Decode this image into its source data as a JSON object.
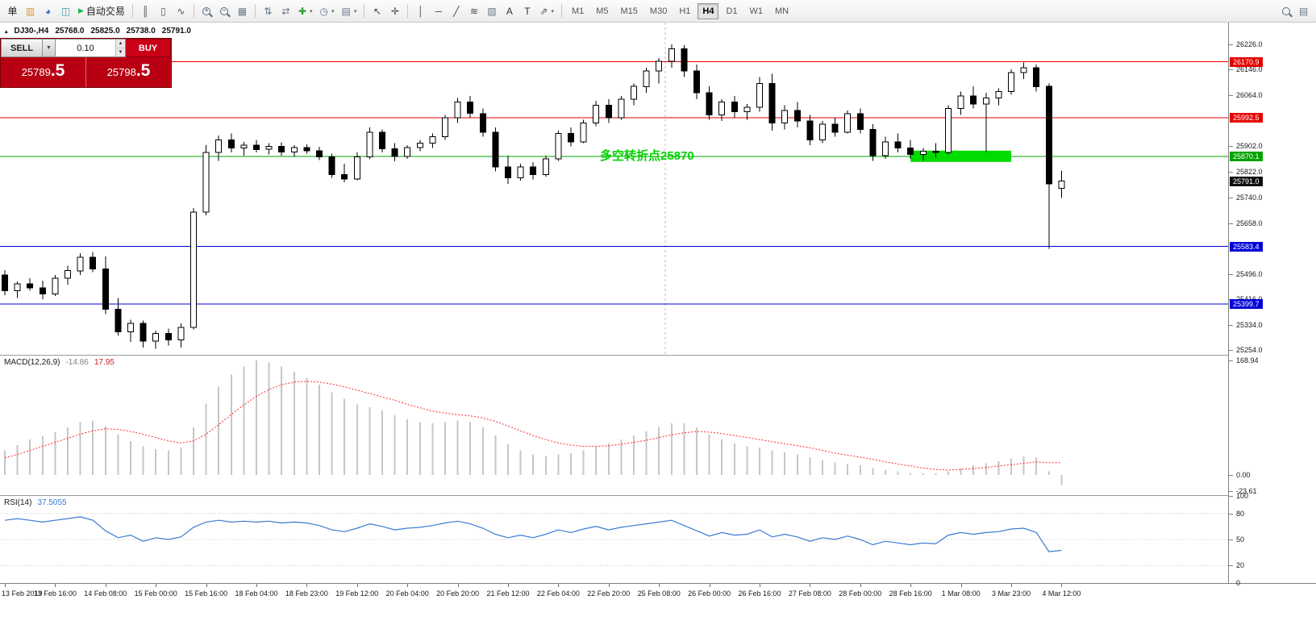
{
  "toolbar": {
    "caret_glyph": "▾",
    "plus_glyph": "+",
    "minus_glyph": "−",
    "timeframes": [
      "M1",
      "M5",
      "M15",
      "M30",
      "H1",
      "H4",
      "D1",
      "W1",
      "MN"
    ],
    "active_timeframe": "H4",
    "items": [
      {
        "type": "button",
        "name": "new-order-button",
        "label": "单"
      },
      {
        "type": "icon",
        "name": "new-chart-icon",
        "glyph": "▥",
        "color": "#d79b3c"
      },
      {
        "type": "icon",
        "name": "profiles-icon",
        "glyph": "◕",
        "color": "#3e6eb4"
      },
      {
        "type": "icon",
        "name": "market-watch-icon",
        "glyph": "◫",
        "color": "#2e9e9e"
      },
      {
        "type": "autotrading",
        "name": "autotrading-button",
        "label": "自动交易",
        "play_glyph": "▶",
        "play_color": "#1db954"
      },
      {
        "type": "sep"
      },
      {
        "type": "icon",
        "name": "bar-chart-icon",
        "glyph": "║",
        "color": "#555555"
      },
      {
        "type": "icon",
        "name": "candlestick-chart-icon",
        "glyph": "▯",
        "color": "#555555"
      },
      {
        "type": "icon",
        "name": "line-chart-icon",
        "glyph": "∿",
        "color": "#555555"
      },
      {
        "type": "sep"
      },
      {
        "type": "zoom-in"
      },
      {
        "type": "zoom-out"
      },
      {
        "type": "icon",
        "name": "tile-windows-icon",
        "glyph": "▦",
        "color": "#6b7b8d"
      },
      {
        "type": "sep"
      },
      {
        "type": "icon",
        "name": "arrange-icon",
        "glyph": "⇅",
        "color": "#667788"
      },
      {
        "type": "icon",
        "name": "auto-scroll-icon",
        "glyph": "⇄",
        "color": "#667788"
      },
      {
        "type": "dropdown-icon",
        "name": "add-indicator-button",
        "glyph": "✚",
        "color": "#2f9e2f"
      },
      {
        "type": "dropdown-icon",
        "name": "period-button",
        "glyph": "◷",
        "color": "#667788"
      },
      {
        "type": "dropdown-icon",
        "name": "template-button",
        "glyph": "▤",
        "color": "#667788"
      },
      {
        "type": "sep"
      },
      {
        "type": "icon",
        "name": "cursor-icon",
        "glyph": "↖",
        "color": "#444444"
      },
      {
        "type": "icon",
        "name": "crosshair-icon",
        "glyph": "✛",
        "color": "#444444"
      },
      {
        "type": "sep"
      },
      {
        "type": "icon",
        "name": "vertical-line-icon",
        "glyph": "│",
        "color": "#444444"
      },
      {
        "type": "icon",
        "name": "horizontal-line-icon",
        "glyph": "─",
        "color": "#444444"
      },
      {
        "type": "icon",
        "name": "trendline-icon",
        "glyph": "╱",
        "color": "#444444"
      },
      {
        "type": "icon",
        "name": "fibonacci-icon",
        "glyph": "≋",
        "color": "#444444"
      },
      {
        "type": "icon",
        "name": "shapes-icon",
        "glyph": "▧",
        "color": "#667788"
      },
      {
        "type": "icon",
        "name": "text-tool-icon",
        "glyph": "A",
        "color": "#333333"
      },
      {
        "type": "icon",
        "name": "text-label-icon",
        "glyph": "T",
        "color": "#333333"
      },
      {
        "type": "dropdown-icon",
        "name": "arrows-tool-button",
        "glyph": "⇗",
        "color": "#555555"
      },
      {
        "type": "sep"
      },
      {
        "type": "timeframes"
      },
      {
        "type": "spacer"
      },
      {
        "type": "search"
      },
      {
        "type": "icon",
        "name": "data-window-icon",
        "glyph": "▤",
        "color": "#667788"
      }
    ]
  },
  "symbol_info": {
    "marker_glyph": "▴",
    "symbol": "DJ30-,H4",
    "open": "25768.0",
    "high": "25825.0",
    "low": "25738.0",
    "close": "25791.0"
  },
  "trade_panel": {
    "sell_label": "SELL",
    "buy_label": "BUY",
    "lot_size": "0.10",
    "dropdown_glyph": "▼",
    "spin_up_glyph": "▲",
    "spin_down_glyph": "▼",
    "sell_price_main": "25789",
    "sell_price_pips": ".5",
    "buy_price_main": "25798",
    "buy_price_pips": ".5",
    "colors": {
      "background": "#b80012",
      "buy_button": "#c90016",
      "sell_button": "#e2e2e2",
      "price_text": "#ffffff"
    }
  },
  "annotation": {
    "text": "多空转折点25870",
    "color": "#00d300"
  },
  "chart_data": {
    "type": "candlestick",
    "price_chart": {
      "ylim": [
        25254,
        26226
      ],
      "axis_ticks": [
        "26226.0",
        "26146.0",
        "26064.0",
        "25902.0",
        "25822.0",
        "25740.0",
        "25658.0",
        "25496.0",
        "25416.0",
        "25334.0",
        "25254.0"
      ],
      "colors": {
        "up": "#ffffff",
        "down": "#000000",
        "wick": "#000000"
      },
      "hlines": [
        {
          "price": 26170.9,
          "label": "26170.9",
          "color": "#e60000"
        },
        {
          "price": 25992.5,
          "label": "25992.5",
          "color": "#e60000"
        },
        {
          "price": 25870.1,
          "label": "25870.1",
          "color": "#00a400"
        },
        {
          "price": 25583.4,
          "label": "25583.4",
          "color": "#0000d8"
        },
        {
          "price": 25399.7,
          "label": "25399.7",
          "color": "#0000d8"
        }
      ],
      "current_price": {
        "value": 25791.0,
        "label": "25791.0",
        "color": "#101010"
      },
      "green_box": {
        "start_index": 72.2,
        "end_index": 79.8,
        "price": 25870.1,
        "color": "#00dc00"
      },
      "vertical_line": {
        "index": 52.5,
        "color": "#bcbcbc"
      },
      "candles": [
        [
          25492,
          25508,
          25428,
          25442
        ],
        [
          25442,
          25472,
          25420,
          25464
        ],
        [
          25464,
          25482,
          25442,
          25452
        ],
        [
          25452,
          25474,
          25415,
          25432
        ],
        [
          25432,
          25492,
          25426,
          25482
        ],
        [
          25482,
          25522,
          25462,
          25506
        ],
        [
          25506,
          25562,
          25492,
          25549
        ],
        [
          25549,
          25566,
          25502,
          25512
        ],
        [
          25512,
          25552,
          25368,
          25384
        ],
        [
          25384,
          25420,
          25300,
          25312
        ],
        [
          25312,
          25350,
          25280,
          25338
        ],
        [
          25338,
          25348,
          25262,
          25282
        ],
        [
          25282,
          25316,
          25258,
          25306
        ],
        [
          25306,
          25322,
          25268,
          25286
        ],
        [
          25286,
          25338,
          25262,
          25326
        ],
        [
          25326,
          25706,
          25320,
          25692
        ],
        [
          25692,
          25906,
          25682,
          25882
        ],
        [
          25882,
          25936,
          25856,
          25922
        ],
        [
          25922,
          25942,
          25882,
          25896
        ],
        [
          25896,
          25916,
          25872,
          25906
        ],
        [
          25906,
          25922,
          25882,
          25892
        ],
        [
          25892,
          25912,
          25876,
          25902
        ],
        [
          25902,
          25914,
          25872,
          25884
        ],
        [
          25884,
          25906,
          25868,
          25898
        ],
        [
          25898,
          25908,
          25878,
          25888
        ],
        [
          25888,
          25900,
          25858,
          25868
        ],
        [
          25868,
          25878,
          25802,
          25812
        ],
        [
          25812,
          25846,
          25788,
          25798
        ],
        [
          25798,
          25882,
          25794,
          25868
        ],
        [
          25868,
          25962,
          25860,
          25946
        ],
        [
          25946,
          25956,
          25882,
          25894
        ],
        [
          25894,
          25912,
          25854,
          25870
        ],
        [
          25870,
          25906,
          25862,
          25898
        ],
        [
          25898,
          25922,
          25886,
          25912
        ],
        [
          25912,
          25942,
          25896,
          25932
        ],
        [
          25932,
          26002,
          25922,
          25992
        ],
        [
          25992,
          26056,
          25976,
          26042
        ],
        [
          26042,
          26062,
          25992,
          26006
        ],
        [
          26006,
          26022,
          25932,
          25946
        ],
        [
          25946,
          25962,
          25822,
          25836
        ],
        [
          25836,
          25872,
          25782,
          25802
        ],
        [
          25802,
          25846,
          25792,
          25836
        ],
        [
          25836,
          25852,
          25796,
          25812
        ],
        [
          25812,
          25872,
          25806,
          25862
        ],
        [
          25862,
          25952,
          25856,
          25942
        ],
        [
          25942,
          25962,
          25902,
          25916
        ],
        [
          25916,
          25986,
          25912,
          25976
        ],
        [
          25976,
          26046,
          25966,
          26032
        ],
        [
          26032,
          26052,
          25976,
          25992
        ],
        [
          25992,
          26062,
          25986,
          26052
        ],
        [
          26052,
          26102,
          26032,
          26092
        ],
        [
          26092,
          26152,
          26072,
          26142
        ],
        [
          26142,
          26182,
          26102,
          26172
        ],
        [
          26172,
          26226,
          26152,
          26212
        ],
        [
          26212,
          26224,
          26122,
          26142
        ],
        [
          26142,
          26162,
          26052,
          26072
        ],
        [
          26072,
          26092,
          25986,
          26002
        ],
        [
          26002,
          26052,
          25982,
          26042
        ],
        [
          26042,
          26062,
          25992,
          26012
        ],
        [
          26012,
          26036,
          25986,
          26026
        ],
        [
          26026,
          26122,
          26012,
          26102
        ],
        [
          26102,
          26132,
          25952,
          25976
        ],
        [
          25976,
          26032,
          25956,
          26016
        ],
        [
          26016,
          26042,
          25962,
          25982
        ],
        [
          25982,
          26002,
          25906,
          25922
        ],
        [
          25922,
          25982,
          25912,
          25972
        ],
        [
          25972,
          25992,
          25932,
          25946
        ],
        [
          25946,
          26016,
          25942,
          26006
        ],
        [
          26006,
          26022,
          25942,
          25956
        ],
        [
          25956,
          25972,
          25856,
          25872
        ],
        [
          25872,
          25932,
          25862,
          25916
        ],
        [
          25916,
          25942,
          25882,
          25896
        ],
        [
          25896,
          25922,
          25862,
          25876
        ],
        [
          25876,
          25896,
          25856,
          25886
        ],
        [
          25886,
          25912,
          25866,
          25882
        ],
        [
          25882,
          26032,
          25876,
          26022
        ],
        [
          26022,
          26076,
          26002,
          26062
        ],
        [
          26062,
          26092,
          26022,
          26036
        ],
        [
          26036,
          26072,
          25882,
          26056
        ],
        [
          26056,
          26086,
          26032,
          26076
        ],
        [
          26076,
          26146,
          26066,
          26136
        ],
        [
          26136,
          26168,
          26116,
          26152
        ],
        [
          26152,
          26162,
          26076,
          26092
        ],
        [
          26092,
          26102,
          25576,
          25782
        ],
        [
          25768,
          25825,
          25738,
          25791
        ]
      ]
    },
    "macd": {
      "label": "MACD(12,26,9)",
      "value": "-14.86",
      "signal_value": "17.95",
      "axis_ticks": [
        "168.94",
        "0.00",
        "-23.61"
      ],
      "range": [
        -30,
        176
      ],
      "colors": {
        "histogram": "#c6c6c6",
        "signal": "#ff2a2a"
      },
      "histogram": [
        36,
        44,
        52,
        57,
        63,
        70,
        78,
        80,
        72,
        60,
        50,
        42,
        38,
        36,
        40,
        70,
        105,
        130,
        148,
        160,
        169,
        166,
        160,
        152,
        143,
        133,
        122,
        112,
        104,
        100,
        95,
        88,
        82,
        78,
        76,
        78,
        80,
        78,
        70,
        58,
        45,
        36,
        30,
        28,
        30,
        32,
        36,
        42,
        46,
        52,
        58,
        64,
        70,
        76,
        76,
        70,
        60,
        52,
        46,
        42,
        40,
        36,
        33,
        30,
        26,
        22,
        18,
        16,
        14,
        10,
        7,
        5,
        3,
        2,
        2,
        5,
        10,
        14,
        17,
        20,
        24,
        27,
        26,
        5,
        -14.86
      ],
      "signal": [
        25,
        30,
        36,
        42,
        48,
        54,
        60,
        65,
        68,
        67,
        64,
        60,
        55,
        50,
        47,
        50,
        60,
        74,
        89,
        103,
        116,
        126,
        133,
        137,
        138,
        137,
        134,
        130,
        125,
        120,
        115,
        110,
        104,
        99,
        94,
        91,
        89,
        87,
        84,
        79,
        72,
        65,
        58,
        52,
        47,
        44,
        42,
        42,
        43,
        45,
        48,
        51,
        55,
        59,
        62,
        64,
        63,
        61,
        58,
        55,
        52,
        49,
        46,
        43,
        40,
        36,
        32,
        29,
        26,
        23,
        19,
        16,
        13,
        10,
        8,
        7,
        8,
        9,
        11,
        13,
        15,
        17,
        19,
        18,
        17.95
      ]
    },
    "rsi": {
      "label": "RSI(14)",
      "value": "37.5055",
      "axis_ticks": [
        "100",
        "80",
        "50",
        "20",
        "0"
      ],
      "levels": [
        80,
        50,
        20
      ],
      "color": "#3b7bd4",
      "values": [
        72,
        74,
        72,
        70,
        72,
        74,
        76,
        72,
        60,
        52,
        55,
        48,
        52,
        50,
        53,
        64,
        70,
        72,
        70,
        71,
        70,
        71,
        69,
        70,
        69,
        66,
        61,
        59,
        63,
        68,
        65,
        61,
        63,
        64,
        66,
        69,
        71,
        68,
        63,
        56,
        52,
        55,
        52,
        56,
        61,
        58,
        62,
        65,
        61,
        64,
        66,
        68,
        70,
        72,
        66,
        60,
        54,
        58,
        55,
        56,
        61,
        53,
        56,
        53,
        48,
        52,
        50,
        54,
        50,
        44,
        48,
        46,
        44,
        46,
        45,
        55,
        58,
        56,
        58,
        59,
        62,
        63,
        58,
        36,
        37.5
      ]
    },
    "time_labels": [
      "13 Feb 2019",
      "13 Feb 16:00",
      "14 Feb 08:00",
      "15 Feb 00:00",
      "15 Feb 16:00",
      "18 Feb 04:00",
      "18 Feb 23:00",
      "19 Feb 12:00",
      "20 Feb 04:00",
      "20 Feb 20:00",
      "21 Feb 12:00",
      "22 Feb 04:00",
      "22 Feb 20:00",
      "25 Feb 08:00",
      "26 Feb 00:00",
      "26 Feb 16:00",
      "27 Feb 08:00",
      "28 Feb 00:00",
      "28 Feb 16:00",
      "1 Mar 08:00",
      "3 Mar 23:00",
      "4 Mar 12:00"
    ]
  }
}
